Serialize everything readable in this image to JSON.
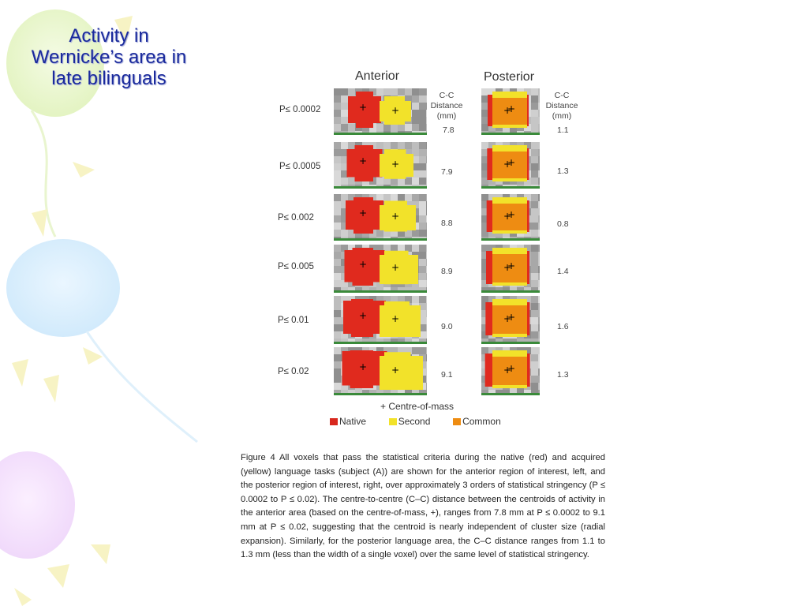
{
  "slide": {
    "title_lines": [
      "Activity in",
      "Wernicke’s area in",
      "late bilinguals"
    ]
  },
  "figure": {
    "columns": {
      "anterior": "Anterior",
      "posterior": "Posterior"
    },
    "cc_header_lines": [
      "C-C",
      "Distance",
      "(mm)"
    ],
    "cc_header_posterior_lines": [
      "C-C",
      "Distance",
      "(mm)"
    ],
    "rows": [
      {
        "p_label": "P≤ 0.0002",
        "anterior_cc": "7.8",
        "posterior_cc": "1.1"
      },
      {
        "p_label": "P≤ 0.0005",
        "anterior_cc": "7.9",
        "posterior_cc": "1.3"
      },
      {
        "p_label": "P≤ 0.002",
        "anterior_cc": "8.8",
        "posterior_cc": "0.8"
      },
      {
        "p_label": "P≤ 0.005",
        "anterior_cc": "8.9",
        "posterior_cc": "1.4"
      },
      {
        "p_label": "P≤ 0.01",
        "anterior_cc": "9.0",
        "posterior_cc": "1.6"
      },
      {
        "p_label": "P≤ 0.02",
        "anterior_cc": "9.1",
        "posterior_cc": "1.3"
      }
    ],
    "legend": {
      "centre_of_mass": "+ Centre-of-mass",
      "native": "Native",
      "second": "Second",
      "common": "Common"
    },
    "colors": {
      "native": "#e02a1e",
      "second": "#f2e22a",
      "common": "#ee8c12"
    },
    "caption": "Figure 4 All voxels that pass the statistical criteria during the native (red) and acquired (yellow) language tasks (subject (A)) are shown for the anterior region of interest, left, and the posterior region of interest, right, over approximately 3 orders of statistical stringency (P ≤ 0.0002 to P ≤ 0.02). The centre-to-centre (C–C) distance between the centroids of activity in the anterior area (based on the centre-of-mass, +), ranges from 7.8 mm at P ≤ 0.0002 to 9.1 mm at P ≤ 0.02, suggesting that the centroid is nearly independent of cluster size (radial expansion). Similarly, for the posterior language area, the C–C distance ranges from 1.1 to 1.3 mm (less than the width of a single voxel) over the same level of statistical stringency."
  }
}
